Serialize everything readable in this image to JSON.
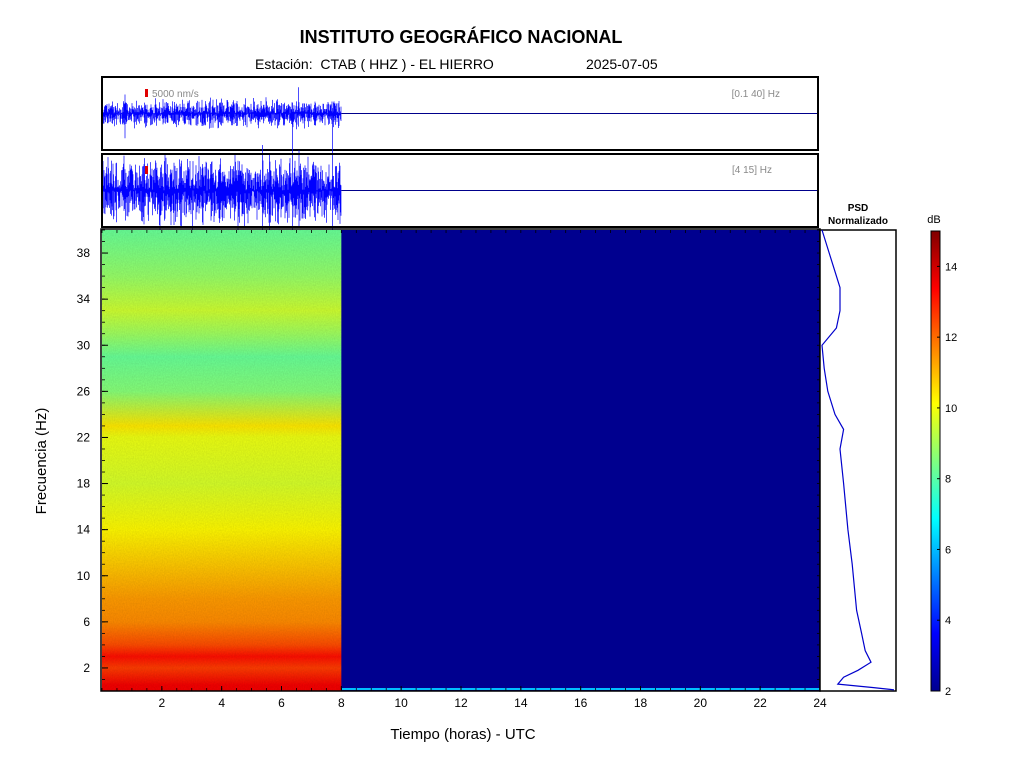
{
  "header": {
    "title": "INSTITUTO GEOGRÁFICO NACIONAL",
    "station": "Estación:  CTAB ( HHZ ) - EL HIERRO",
    "date": "2025-07-05"
  },
  "chart_data": [
    {
      "type": "line",
      "panel": "seismogram-1",
      "scale_label": "5000 nm/s",
      "band_label": "[0.1 40] Hz",
      "x_range": [
        0,
        24
      ],
      "data_until_hour": 8,
      "color": "#0000ff",
      "baseline_color": "#00008b"
    },
    {
      "type": "line",
      "panel": "seismogram-2",
      "band_label": "[4 15] Hz",
      "x_range": [
        0,
        24
      ],
      "data_until_hour": 8,
      "color": "#0000ff",
      "baseline_color": "#00008b"
    },
    {
      "type": "heatmap",
      "panel": "spectrogram",
      "xlabel": "Tiempo (horas) - UTC",
      "ylabel": "Frecuencia  (Hz)",
      "xlim": [
        0,
        24
      ],
      "ylim": [
        0,
        40
      ],
      "xticks": [
        2,
        4,
        6,
        8,
        10,
        12,
        14,
        16,
        18,
        20,
        22,
        24
      ],
      "yticks": [
        2,
        6,
        10,
        14,
        18,
        22,
        26,
        30,
        34,
        38
      ],
      "data_until_hour": 8,
      "no_data_color": "#00008f",
      "frequency_profile_db": [
        {
          "f": 0.5,
          "db": 13.5
        },
        {
          "f": 2,
          "db": 12.6
        },
        {
          "f": 3,
          "db": 13.2
        },
        {
          "f": 4,
          "db": 12.4
        },
        {
          "f": 6,
          "db": 11.6
        },
        {
          "f": 8,
          "db": 11.4
        },
        {
          "f": 10,
          "db": 11.0
        },
        {
          "f": 14,
          "db": 10.2
        },
        {
          "f": 18,
          "db": 9.6
        },
        {
          "f": 22,
          "db": 9.9
        },
        {
          "f": 23,
          "db": 10.4
        },
        {
          "f": 26,
          "db": 8.6
        },
        {
          "f": 29,
          "db": 8.2
        },
        {
          "f": 31,
          "db": 8.9
        },
        {
          "f": 33,
          "db": 9.5
        },
        {
          "f": 36,
          "db": 8.8
        },
        {
          "f": 40,
          "db": 8.2
        }
      ]
    },
    {
      "type": "line",
      "panel": "psd",
      "title_line1": "PSD",
      "title_line2": "Normalizado",
      "x_range": [
        0,
        1
      ],
      "points": [
        {
          "f": 0.1,
          "v": 1.0
        },
        {
          "f": 0.3,
          "v": 0.7
        },
        {
          "f": 0.6,
          "v": 0.22
        },
        {
          "f": 1.2,
          "v": 0.3
        },
        {
          "f": 1.8,
          "v": 0.5
        },
        {
          "f": 2.5,
          "v": 0.68
        },
        {
          "f": 3.5,
          "v": 0.6
        },
        {
          "f": 5,
          "v": 0.55
        },
        {
          "f": 7,
          "v": 0.48
        },
        {
          "f": 9,
          "v": 0.45
        },
        {
          "f": 11,
          "v": 0.42
        },
        {
          "f": 14,
          "v": 0.36
        },
        {
          "f": 18,
          "v": 0.3
        },
        {
          "f": 21,
          "v": 0.25
        },
        {
          "f": 22.7,
          "v": 0.3
        },
        {
          "f": 24,
          "v": 0.18
        },
        {
          "f": 26,
          "v": 0.08
        },
        {
          "f": 28,
          "v": 0.03
        },
        {
          "f": 30,
          "v": 0.0
        },
        {
          "f": 31.5,
          "v": 0.2
        },
        {
          "f": 33,
          "v": 0.25
        },
        {
          "f": 35,
          "v": 0.25
        },
        {
          "f": 37,
          "v": 0.15
        },
        {
          "f": 39,
          "v": 0.05
        },
        {
          "f": 40,
          "v": 0.0
        }
      ]
    },
    {
      "type": "colorbar",
      "panel": "colorbar",
      "unit": "dB",
      "range": [
        2,
        15
      ],
      "ticks": [
        2,
        4,
        6,
        8,
        10,
        12,
        14
      ]
    }
  ]
}
